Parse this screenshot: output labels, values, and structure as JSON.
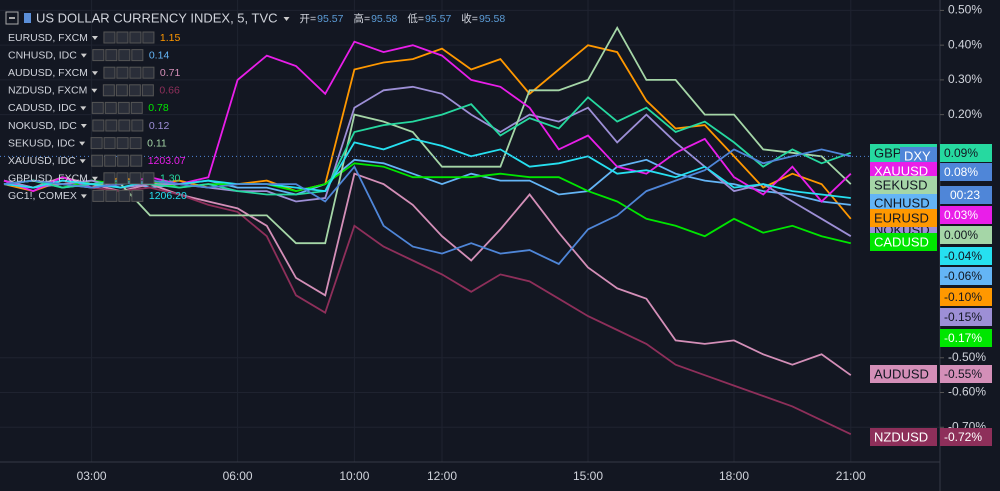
{
  "chart_data": {
    "type": "line",
    "title": "US DOLLAR CURRENCY INDEX, 5, TVC",
    "ohlc": [
      {
        "label": "开=",
        "value": 95.57
      },
      {
        "label": "高=",
        "value": 95.58
      },
      {
        "label": "低=",
        "value": 95.57
      },
      {
        "label": "收=",
        "value": 95.58
      }
    ],
    "countdown": "00:23",
    "categories": [
      null,
      null,
      null,
      "03:00",
      null,
      null,
      null,
      null,
      "06:00",
      null,
      null,
      null,
      "10:00",
      null,
      null,
      "12:00",
      null,
      null,
      null,
      null,
      "15:00",
      null,
      null,
      null,
      null,
      "18:00",
      null,
      null,
      null,
      "21:00"
    ],
    "ylim": [
      -0.8,
      0.53
    ],
    "yticks": [
      {
        "value": 0.5,
        "label": "0.50%"
      },
      {
        "value": 0.4,
        "label": "0.40%"
      },
      {
        "value": 0.3,
        "label": "0.30%"
      },
      {
        "value": 0.2,
        "label": "0.20%"
      },
      {
        "value": -0.5,
        "label": "-0.50%"
      },
      {
        "value": -0.6,
        "label": "-0.60%"
      },
      {
        "value": -0.7,
        "label": "-0.70%"
      }
    ],
    "grid": true,
    "series": [
      {
        "name": "EURUSD, FXCM",
        "color": "#ff9800",
        "legend_value": 1.15,
        "tag": "EURUSD",
        "tag_label": "-0.10%",
        "values": [
          0.0,
          -0.02,
          0.01,
          -0.01,
          0.02,
          0.0,
          0.01,
          -0.01,
          0.0,
          0.01,
          -0.02,
          0.0,
          0.33,
          0.35,
          0.36,
          0.39,
          0.33,
          0.36,
          0.26,
          0.33,
          0.4,
          0.38,
          0.24,
          0.16,
          0.17,
          0.08,
          -0.01,
          0.03,
          0.0,
          -0.1
        ]
      },
      {
        "name": "CNHUSD, IDC",
        "color": "#64b5f6",
        "legend_value": 0.14,
        "tag": "CNHUSD",
        "tag_label": "-0.06%",
        "values": [
          0.0,
          0.01,
          -0.01,
          0.0,
          0.01,
          -0.01,
          0.0,
          0.01,
          -0.01,
          -0.01,
          -0.03,
          0.0,
          0.07,
          0.06,
          0.03,
          0.0,
          0.03,
          0.01,
          0.01,
          -0.03,
          -0.02,
          0.05,
          0.07,
          0.03,
          0.01,
          0.0,
          -0.02,
          -0.03,
          -0.05,
          -0.06
        ]
      },
      {
        "name": "AUDUSD, FXCM",
        "color": "#d48fb8",
        "legend_value": 0.71,
        "tag": "AUDUSD",
        "tag_label": "-0.55%",
        "values": [
          0.01,
          -0.01,
          0.02,
          0.0,
          -0.02,
          0.0,
          -0.03,
          -0.05,
          -0.07,
          -0.12,
          -0.27,
          -0.32,
          0.03,
          0.0,
          -0.06,
          -0.15,
          -0.22,
          -0.13,
          -0.03,
          -0.14,
          -0.24,
          -0.3,
          -0.33,
          -0.45,
          -0.46,
          -0.45,
          -0.49,
          -0.52,
          -0.49,
          -0.55
        ]
      },
      {
        "name": "NZDUSD, FXCM",
        "color": "#8e2f5a",
        "legend_value": 0.66,
        "tag": "NZDUSD",
        "tag_label": "-0.72%",
        "values": [
          0.0,
          -0.01,
          0.01,
          -0.01,
          -0.02,
          -0.01,
          -0.03,
          -0.06,
          -0.08,
          -0.15,
          -0.32,
          -0.37,
          -0.12,
          -0.18,
          -0.22,
          -0.26,
          -0.31,
          -0.26,
          -0.28,
          -0.33,
          -0.38,
          -0.42,
          -0.46,
          -0.52,
          -0.55,
          -0.58,
          -0.61,
          -0.64,
          -0.68,
          -0.72
        ]
      },
      {
        "name": "CADUSD, IDC",
        "color": "#00e600",
        "legend_value": 0.78,
        "tag": "CADUSD",
        "tag_label": "-0.17%",
        "values": [
          0.0,
          0.01,
          -0.01,
          0.01,
          0.0,
          0.01,
          -0.01,
          0.0,
          0.0,
          0.0,
          -0.02,
          0.0,
          0.06,
          0.05,
          0.02,
          0.02,
          0.02,
          0.03,
          0.02,
          0.02,
          -0.02,
          -0.05,
          -0.1,
          -0.12,
          -0.15,
          -0.1,
          -0.14,
          -0.12,
          -0.15,
          -0.17
        ]
      },
      {
        "name": "NOKUSD, IDC",
        "color": "#9d8fd6",
        "legend_value": 0.12,
        "tag": "NOKUSD",
        "tag_label": "-0.15%",
        "values": [
          0.01,
          -0.01,
          0.0,
          0.01,
          -0.01,
          0.0,
          0.0,
          -0.01,
          -0.02,
          -0.02,
          -0.05,
          -0.04,
          0.22,
          0.27,
          0.28,
          0.26,
          0.2,
          0.15,
          0.2,
          0.18,
          0.22,
          0.12,
          0.2,
          0.12,
          0.05,
          -0.02,
          0.0,
          -0.05,
          -0.1,
          -0.15
        ]
      },
      {
        "name": "SEKUSD, IDC",
        "color": "#a5d6a7",
        "legend_value": 0.11,
        "tag": "SEKUSD",
        "tag_label": "0.00%",
        "values": [
          0.0,
          0.01,
          0.0,
          -0.01,
          0.0,
          -0.09,
          -0.09,
          -0.09,
          -0.09,
          -0.09,
          -0.17,
          -0.17,
          0.2,
          0.18,
          0.15,
          0.05,
          0.05,
          0.05,
          0.27,
          0.27,
          0.3,
          0.45,
          0.3,
          0.3,
          0.2,
          0.2,
          0.1,
          0.09,
          0.08,
          0.0
        ]
      },
      {
        "name": "XAUUSD, IDC",
        "color": "#e91ee9",
        "legend_value": 1203.07,
        "tag": "XAUUSD",
        "tag_label": "0.03%",
        "values": [
          0.01,
          -0.02,
          0.02,
          -0.01,
          0.0,
          0.02,
          0.0,
          0.02,
          0.3,
          0.37,
          0.34,
          0.26,
          0.41,
          0.38,
          0.4,
          0.37,
          0.3,
          0.28,
          0.22,
          0.1,
          0.14,
          0.05,
          0.03,
          0.09,
          0.13,
          0.02,
          -0.03,
          0.05,
          -0.05,
          0.03
        ]
      },
      {
        "name": "GBPUSD, FXCM",
        "color": "#26d9a0",
        "legend_value": 1.3,
        "legend_value_label": "1.30",
        "tag": "GBPUSD",
        "tag_label": "0.09%",
        "values": [
          0.0,
          0.01,
          -0.01,
          0.0,
          0.01,
          0.0,
          -0.01,
          0.0,
          -0.02,
          -0.03,
          -0.03,
          -0.02,
          0.15,
          0.17,
          0.18,
          0.2,
          0.23,
          0.14,
          0.19,
          0.16,
          0.25,
          0.18,
          0.22,
          0.15,
          0.18,
          0.12,
          0.05,
          0.1,
          0.06,
          0.09
        ]
      },
      {
        "name": "GC1!, COMEX",
        "color": "#26e0f0",
        "legend_value": 1206.2,
        "legend_value_label": "1206.20",
        "tag_label": "-0.04%",
        "values": [
          0.0,
          -0.01,
          0.01,
          0.0,
          -0.01,
          0.01,
          0.0,
          0.01,
          0.0,
          0.0,
          -0.01,
          -0.02,
          0.12,
          0.1,
          0.13,
          0.11,
          0.08,
          0.1,
          0.05,
          0.06,
          0.08,
          0.03,
          0.04,
          0.02,
          0.05,
          -0.01,
          0.0,
          -0.02,
          -0.03,
          -0.04
        ]
      },
      {
        "color": "#4f86d8",
        "tag": "DXY",
        "tag_label": "0.08%",
        "values": [
          0.0,
          0.01,
          0.0,
          -0.01,
          0.0,
          0.01,
          0.0,
          -0.01,
          0.0,
          0.0,
          0.0,
          -0.05,
          0.05,
          -0.12,
          -0.18,
          -0.2,
          -0.17,
          -0.2,
          -0.19,
          -0.23,
          -0.13,
          -0.09,
          -0.02,
          0.01,
          0.04,
          0.1,
          0.06,
          0.08,
          0.1,
          0.08
        ]
      }
    ]
  }
}
